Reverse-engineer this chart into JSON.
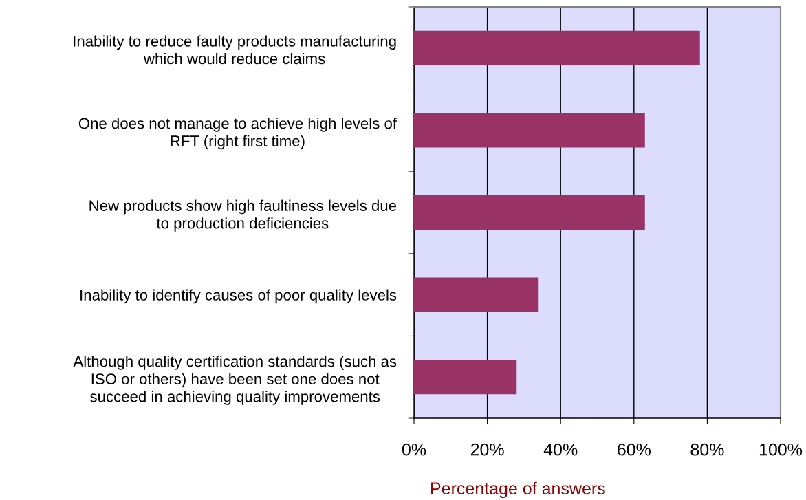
{
  "chart_data": {
    "type": "bar",
    "orientation": "horizontal",
    "categories": [
      "Inability to reduce faulty products manufacturing\nwhich would reduce claims",
      "One does not manage to achieve high levels of\nRFT (right first time)",
      "New products show high faultiness levels due\nto production deficiencies",
      "Inability to identify causes of poor quality levels",
      "Although quality certification standards (such as\nISO or others) have been set one does not\nsucceed in achieving quality improvements"
    ],
    "values": [
      78,
      63,
      63,
      34,
      28
    ],
    "color": "#993366",
    "xlabel": "Percentage of answers",
    "xlim": [
      0,
      100
    ],
    "xticks": [
      {
        "value": 0,
        "label": "0%"
      },
      {
        "value": 20,
        "label": "20%"
      },
      {
        "value": 40,
        "label": "40%"
      },
      {
        "value": 60,
        "label": "60%"
      },
      {
        "value": 80,
        "label": "80%"
      },
      {
        "value": 100,
        "label": "100%"
      }
    ],
    "grid": "x"
  }
}
